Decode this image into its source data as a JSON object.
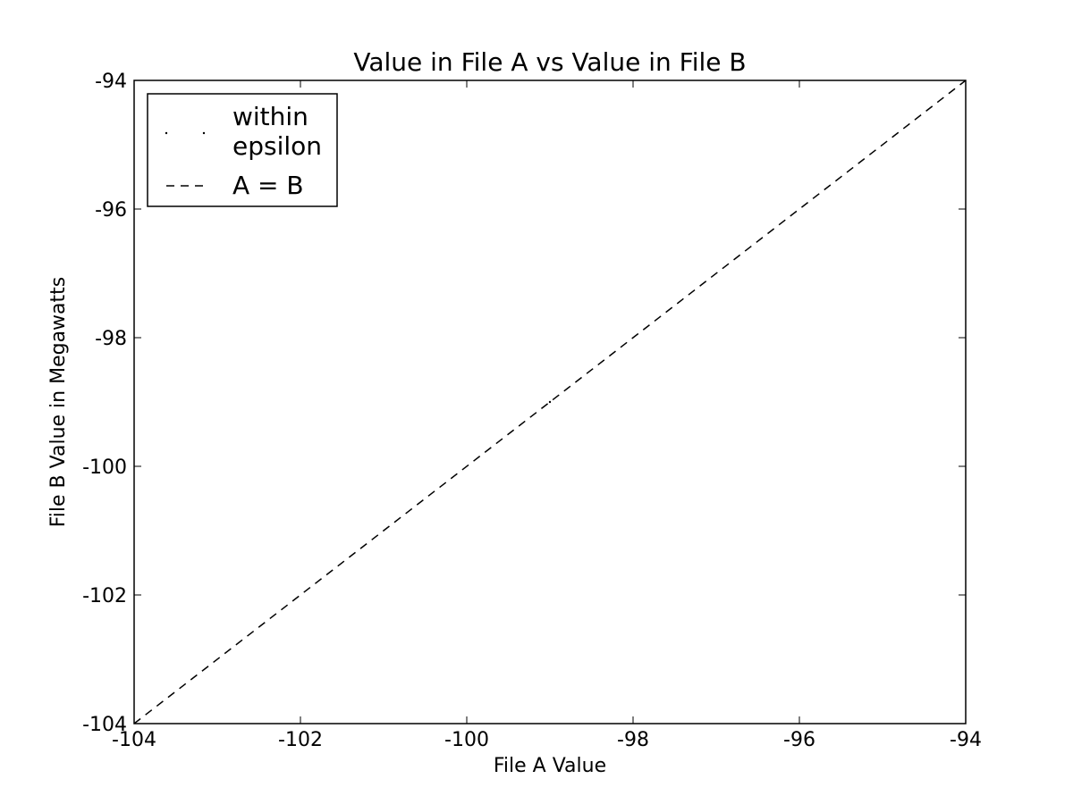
{
  "chart_data": {
    "type": "line",
    "title": "Value in File A vs Value in File B",
    "xlabel": "File A Value",
    "ylabel": "File B Value in Megawatts",
    "xlim": [
      -104,
      -94
    ],
    "ylim": [
      -104,
      -94
    ],
    "xticks": [
      -104,
      -102,
      -100,
      -98,
      -96,
      -94
    ],
    "yticks": [
      -94,
      -96,
      -98,
      -100,
      -102,
      -104
    ],
    "grid": false,
    "legend_position": "upper-left",
    "series": [
      {
        "name": "within epsilon",
        "style": "points",
        "color": "#000000",
        "x": [
          -99
        ],
        "y": [
          -99
        ]
      },
      {
        "name": "A = B",
        "style": "dashed",
        "color": "#000000",
        "x": [
          -104,
          -94
        ],
        "y": [
          -104,
          -94
        ]
      }
    ],
    "legend": {
      "entries": [
        {
          "line1": "within",
          "line2": "epsilon"
        },
        {
          "line1": "A = B"
        }
      ]
    }
  }
}
